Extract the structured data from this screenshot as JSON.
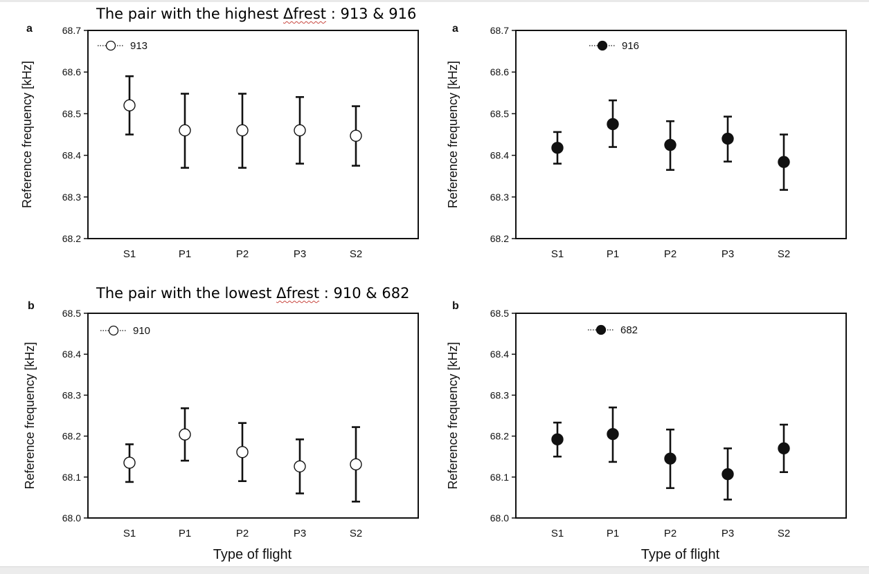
{
  "headings": {
    "highest": {
      "prefix": "The pair with the highest ",
      "term": "Δfrest",
      "suffix": " : 913 & 916"
    },
    "lowest": {
      "prefix": "The pair with the lowest ",
      "term": "Δfrest",
      "suffix": " : 910 & 682"
    }
  },
  "colors": {
    "open_marker_fill": "#ffffff",
    "filled_marker_fill": "#111111",
    "ink": "#111111"
  },
  "chart_data": [
    {
      "type": "scatter",
      "panel_letter": "a",
      "ylabel": "Reference frequency [kHz]",
      "xlabel": "",
      "categories": [
        "S1",
        "P1",
        "P2",
        "P3",
        "S2"
      ],
      "ylim": [
        68.2,
        68.7
      ],
      "yticks": [
        "68.2",
        "68.3",
        "68.4",
        "68.5",
        "68.6",
        "68.7"
      ],
      "grid": false,
      "legend_position": "top-left",
      "series": [
        {
          "name": "913",
          "marker": "open",
          "values": [
            68.52,
            68.46,
            68.46,
            68.46,
            68.447
          ],
          "err_low": [
            68.45,
            68.37,
            68.37,
            68.38,
            68.375
          ],
          "err_high": [
            68.59,
            68.548,
            68.548,
            68.54,
            68.518
          ]
        }
      ]
    },
    {
      "type": "scatter",
      "panel_letter": "a",
      "ylabel": "Reference frequency [kHz]",
      "xlabel": "",
      "categories": [
        "S1",
        "P1",
        "P2",
        "P3",
        "S2"
      ],
      "ylim": [
        68.2,
        68.7
      ],
      "yticks": [
        "68.2",
        "68.3",
        "68.4",
        "68.5",
        "68.6",
        "68.7"
      ],
      "grid": false,
      "legend_position": "top-center",
      "series": [
        {
          "name": "916",
          "marker": "filled",
          "values": [
            68.418,
            68.475,
            68.425,
            68.44,
            68.384
          ],
          "err_low": [
            68.38,
            68.42,
            68.365,
            68.385,
            68.317
          ],
          "err_high": [
            68.456,
            68.532,
            68.482,
            68.493,
            68.45
          ]
        }
      ]
    },
    {
      "type": "scatter",
      "panel_letter": "b",
      "ylabel": "Reference frequency [kHz]",
      "xlabel": "Type of flight",
      "categories": [
        "S1",
        "P1",
        "P2",
        "P3",
        "S2"
      ],
      "ylim": [
        68.0,
        68.5
      ],
      "yticks": [
        "68.0",
        "68.1",
        "68.2",
        "68.3",
        "68.4",
        "68.5"
      ],
      "grid": false,
      "legend_position": "top-left",
      "series": [
        {
          "name": "910",
          "marker": "open",
          "values": [
            68.135,
            68.204,
            68.161,
            68.126,
            68.131
          ],
          "err_low": [
            68.088,
            68.14,
            68.09,
            68.06,
            68.04
          ],
          "err_high": [
            68.18,
            68.268,
            68.232,
            68.192,
            68.222
          ]
        }
      ]
    },
    {
      "type": "scatter",
      "panel_letter": "b",
      "ylabel": "Reference frequency [kHz]",
      "xlabel": "Type of flight",
      "categories": [
        "S1",
        "P1",
        "P2",
        "P3",
        "S2"
      ],
      "ylim": [
        68.0,
        68.5
      ],
      "yticks": [
        "68.0",
        "68.1",
        "68.2",
        "68.3",
        "68.4",
        "68.5"
      ],
      "grid": false,
      "legend_position": "top-center",
      "series": [
        {
          "name": "682",
          "marker": "filled",
          "values": [
            68.192,
            68.205,
            68.145,
            68.107,
            68.17
          ],
          "err_low": [
            68.15,
            68.137,
            68.073,
            68.045,
            68.112
          ],
          "err_high": [
            68.233,
            68.27,
            68.216,
            68.17,
            68.228
          ]
        }
      ]
    }
  ]
}
